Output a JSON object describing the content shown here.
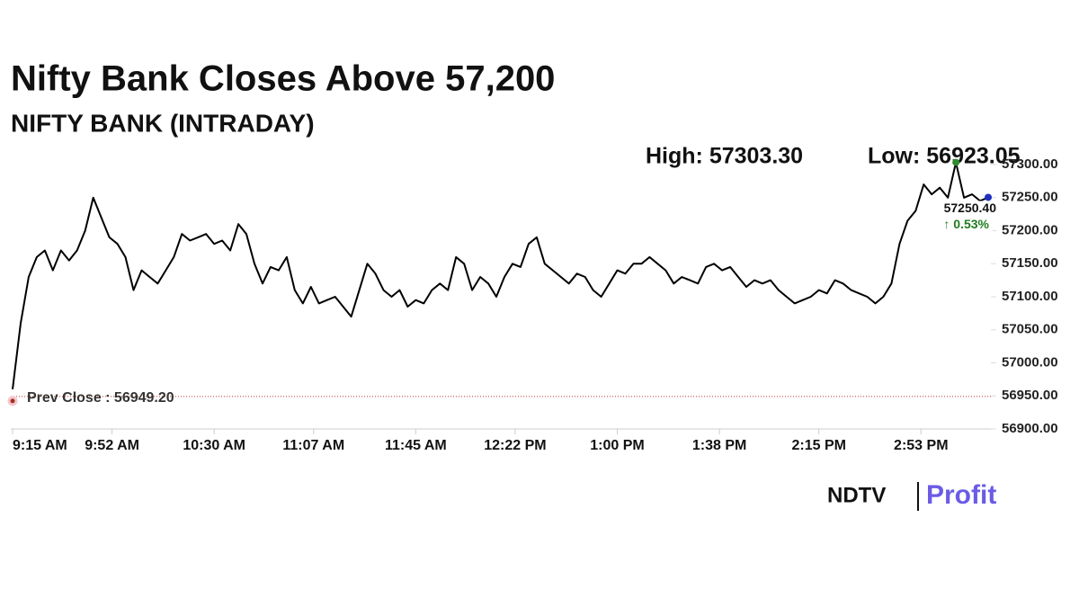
{
  "chart_data": {
    "type": "line",
    "title": "Nifty Bank Closes Above 57,200",
    "subtitle": "NIFTY BANK (INTRADAY)",
    "high_label": "High: 57303.30",
    "low_label": "Low: 56923.05",
    "prev_close": {
      "value": 56949.2,
      "label": "Prev Close : 56949.20"
    },
    "last_label": "57250.40",
    "change_label": "↑ 0.53%",
    "logo": {
      "left": "NDTV",
      "right": "Profit"
    },
    "color": "#000000",
    "xlim": [
      0,
      364
    ],
    "xticks": [
      {
        "value": 0,
        "label": "9:15 AM"
      },
      {
        "value": 37,
        "label": "9:52 AM"
      },
      {
        "value": 75,
        "label": "10:30 AM"
      },
      {
        "value": 112,
        "label": "11:07 AM"
      },
      {
        "value": 150,
        "label": "11:45 AM"
      },
      {
        "value": 187,
        "label": "12:22 PM"
      },
      {
        "value": 225,
        "label": "1:00 PM"
      },
      {
        "value": 263,
        "label": "1:38 PM"
      },
      {
        "value": 300,
        "label": "2:15 PM"
      },
      {
        "value": 338,
        "label": "2:53 PM"
      }
    ],
    "ylim": [
      56900,
      57300
    ],
    "yticks": [
      {
        "value": 56900,
        "label": "56900.00"
      },
      {
        "value": 56950,
        "label": "56950.00"
      },
      {
        "value": 57000,
        "label": "57000.00"
      },
      {
        "value": 57050,
        "label": "57050.00"
      },
      {
        "value": 57100,
        "label": "57100.00"
      },
      {
        "value": 57150,
        "label": "57150.00"
      },
      {
        "value": 57200,
        "label": "57200.00"
      },
      {
        "value": 57250,
        "label": "57250.00"
      },
      {
        "value": 57300,
        "label": "57300.00"
      }
    ],
    "x": [
      0,
      3,
      6,
      9,
      12,
      15,
      18,
      21,
      24,
      27,
      30,
      33,
      36,
      39,
      42,
      45,
      48,
      51,
      54,
      57,
      60,
      63,
      66,
      69,
      72,
      75,
      78,
      81,
      84,
      87,
      90,
      93,
      96,
      99,
      102,
      105,
      108,
      111,
      114,
      117,
      120,
      123,
      126,
      129,
      132,
      135,
      138,
      141,
      144,
      147,
      150,
      153,
      156,
      159,
      162,
      165,
      168,
      171,
      174,
      177,
      180,
      183,
      186,
      189,
      192,
      195,
      198,
      201,
      204,
      207,
      210,
      213,
      216,
      219,
      222,
      225,
      228,
      231,
      234,
      237,
      240,
      243,
      246,
      249,
      252,
      255,
      258,
      261,
      264,
      267,
      270,
      273,
      276,
      279,
      282,
      285,
      288,
      291,
      294,
      297,
      300,
      303,
      306,
      309,
      312,
      315,
      318,
      321,
      324,
      327,
      330,
      333,
      336,
      339,
      342,
      345,
      348,
      351,
      354,
      357,
      360,
      363
    ],
    "values": [
      56960,
      57060,
      57130,
      57160,
      57170,
      57140,
      57170,
      57155,
      57170,
      57200,
      57250,
      57220,
      57190,
      57180,
      57160,
      57110,
      57140,
      57130,
      57120,
      57140,
      57160,
      57195,
      57185,
      57190,
      57195,
      57180,
      57185,
      57170,
      57210,
      57195,
      57150,
      57120,
      57145,
      57140,
      57160,
      57110,
      57090,
      57115,
      57090,
      57095,
      57100,
      57085,
      57070,
      57110,
      57150,
      57135,
      57110,
      57100,
      57110,
      57085,
      57095,
      57090,
      57110,
      57120,
      57110,
      57160,
      57150,
      57110,
      57130,
      57120,
      57100,
      57130,
      57150,
      57145,
      57180,
      57190,
      57150,
      57140,
      57130,
      57120,
      57135,
      57130,
      57110,
      57100,
      57120,
      57140,
      57135,
      57150,
      57150,
      57160,
      57150,
      57140,
      57120,
      57130,
      57125,
      57120,
      57145,
      57150,
      57140,
      57145,
      57130,
      57115,
      57125,
      57120,
      57125,
      57110,
      57100,
      57090,
      57095,
      57100,
      57110,
      57105,
      57125,
      57120,
      57110,
      57105,
      57100,
      57090,
      57100,
      57120,
      57180,
      57215,
      57230,
      57270,
      57255,
      57265,
      57250,
      57303.3,
      57250,
      57255,
      57245,
      57250.4
    ]
  }
}
